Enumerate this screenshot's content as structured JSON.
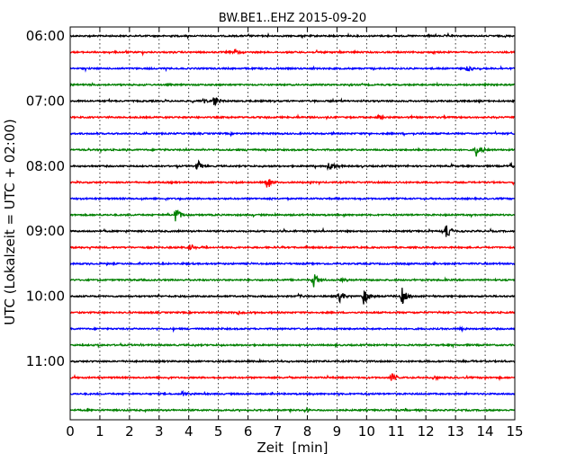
{
  "chart_data": {
    "type": "line",
    "title": "BW.BE1..EHZ 2015-09-20",
    "xlabel": "Zeit  [min]",
    "ylabel": "UTC (Lokalzeit = UTC + 02:00)",
    "xlim": [
      0,
      15
    ],
    "x_ticks": [
      "0",
      "1",
      "2",
      "3",
      "4",
      "5",
      "6",
      "7",
      "8",
      "9",
      "10",
      "11",
      "12",
      "13",
      "14",
      "15"
    ],
    "y_tick_labels": [
      "06:00",
      "07:00",
      "08:00",
      "09:00",
      "10:00",
      "11:00"
    ],
    "grid": "vertical dotted",
    "trace_interval_min": 15,
    "colors": [
      "#000000",
      "#ff0000",
      "#0000ff",
      "#008000"
    ],
    "traces": [
      {
        "time": "06:00",
        "color": "#000000",
        "events": []
      },
      {
        "time": "06:15",
        "color": "#ff0000",
        "events": [
          {
            "x": 5.55,
            "amp": 0.35
          }
        ]
      },
      {
        "time": "06:30",
        "color": "#0000ff",
        "events": [
          {
            "x": 13.4,
            "amp": 0.35
          }
        ]
      },
      {
        "time": "06:45",
        "color": "#008000",
        "events": []
      },
      {
        "time": "07:00",
        "color": "#000000",
        "events": [
          {
            "x": 4.85,
            "amp": 0.6
          },
          {
            "x": 4.5,
            "amp": 0.25
          }
        ]
      },
      {
        "time": "07:15",
        "color": "#ff0000",
        "events": [
          {
            "x": 10.4,
            "amp": 0.3
          }
        ]
      },
      {
        "time": "07:30",
        "color": "#0000ff",
        "events": []
      },
      {
        "time": "07:45",
        "color": "#008000",
        "events": [
          {
            "x": 13.7,
            "amp": 0.8
          }
        ]
      },
      {
        "time": "08:00",
        "color": "#000000",
        "events": [
          {
            "x": 4.3,
            "amp": 0.7
          },
          {
            "x": 8.7,
            "amp": 0.75
          },
          {
            "x": 14.85,
            "amp": 0.25
          }
        ]
      },
      {
        "time": "08:15",
        "color": "#ff0000",
        "events": [
          {
            "x": 6.65,
            "amp": 0.75
          }
        ]
      },
      {
        "time": "08:30",
        "color": "#0000ff",
        "events": []
      },
      {
        "time": "08:45",
        "color": "#008000",
        "events": [
          {
            "x": 3.55,
            "amp": 0.95
          }
        ]
      },
      {
        "time": "09:00",
        "color": "#000000",
        "events": [
          {
            "x": 12.7,
            "amp": 0.8
          }
        ]
      },
      {
        "time": "09:15",
        "color": "#ff0000",
        "events": [
          {
            "x": 4.05,
            "amp": 0.35
          }
        ]
      },
      {
        "time": "09:30",
        "color": "#0000ff",
        "events": []
      },
      {
        "time": "09:45",
        "color": "#008000",
        "events": [
          {
            "x": 8.2,
            "amp": 0.85
          },
          {
            "x": 9.15,
            "amp": 0.25
          }
        ]
      },
      {
        "time": "10:00",
        "color": "#000000",
        "events": [
          {
            "x": 9.1,
            "amp": 0.7
          },
          {
            "x": 9.9,
            "amp": 1.0
          },
          {
            "x": 11.2,
            "amp": 0.85
          },
          {
            "x": 7.7,
            "amp": 0.2
          }
        ]
      },
      {
        "time": "10:15",
        "color": "#ff0000",
        "events": [
          {
            "x": 5.65,
            "amp": 0.2
          }
        ]
      },
      {
        "time": "10:30",
        "color": "#0000ff",
        "events": [
          {
            "x": 13.2,
            "amp": 0.25
          }
        ]
      },
      {
        "time": "10:45",
        "color": "#008000",
        "events": []
      },
      {
        "time": "11:00",
        "color": "#000000",
        "events": []
      },
      {
        "time": "11:15",
        "color": "#ff0000",
        "events": [
          {
            "x": 10.85,
            "amp": 0.45
          },
          {
            "x": 12.25,
            "amp": 0.2
          }
        ]
      },
      {
        "time": "11:30",
        "color": "#0000ff",
        "events": [
          {
            "x": 3.8,
            "amp": 0.25
          }
        ]
      },
      {
        "time": "11:45",
        "color": "#008000",
        "events": [
          {
            "x": 7.95,
            "amp": 0.3
          }
        ]
      }
    ]
  }
}
